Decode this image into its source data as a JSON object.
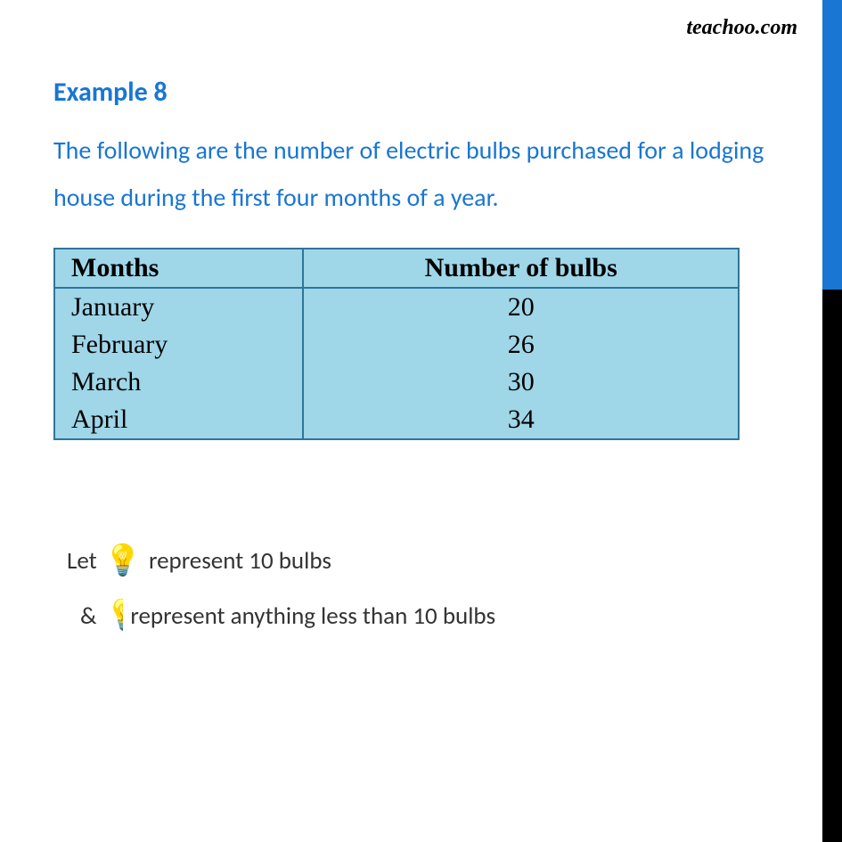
{
  "watermark": "teachoo.com",
  "heading": "Example 8",
  "problem_text": "The following are the number of electric bulbs purchased for a lodging house during the first four months of a year.",
  "table": {
    "headers": {
      "months": "Months",
      "bulbs": "Number of bulbs"
    },
    "rows": [
      {
        "month": "January",
        "count": "20"
      },
      {
        "month": "February",
        "count": "26"
      },
      {
        "month": "March",
        "count": "30"
      },
      {
        "month": "April",
        "count": "34"
      }
    ],
    "header_bg": "#9fd6e8",
    "border_color": "#2e7599",
    "heading_color": "#1976d2"
  },
  "legend": {
    "prefix1": "Let",
    "suffix1": "represent 10 bulbs",
    "prefix2": "&",
    "suffix2": "represent anything less than 10 bulbs",
    "icon_full": "💡",
    "icon_half": "💡",
    "icon_color": "#ffb300"
  }
}
